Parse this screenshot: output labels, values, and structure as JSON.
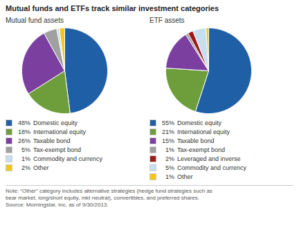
{
  "title": "Mutual funds and ETFs track similar investment categories",
  "annotations": [
    "Note: “Other” category includes alternative strategies (hedge fund strategies such as",
    "bear market, long/short equity, mkt neutral), convertibles, and preferred shares.",
    "Source: Morningstar, Inc. as of 9/30/2013."
  ],
  "chart_data": [
    {
      "type": "pie",
      "title": "Mutual fund assets",
      "categories": [
        "Domestic equity",
        "International equity",
        "Taxable bond",
        "Tax-exempt bond",
        "Commodity and currency",
        "Other"
      ],
      "values": [
        48,
        18,
        26,
        5,
        1,
        2
      ],
      "value_labels": [
        "48%",
        "18%",
        "26%",
        "5%",
        "1%",
        "2%"
      ],
      "colors": [
        "#1f5fa6",
        "#6e9e3b",
        "#7b3fa0",
        "#a0a0a0",
        "#c6dff0",
        "#f5c518"
      ],
      "legend": "bottom"
    },
    {
      "type": "pie",
      "title": "ETF assets",
      "categories": [
        "Domestic equity",
        "International equity",
        "Taxable bond",
        "Tax-exempt bond",
        "Leveraged and inverse",
        "Commodity and currency",
        "Other"
      ],
      "values": [
        55,
        21,
        15,
        1,
        2,
        5,
        1
      ],
      "value_labels": [
        "55%",
        "21%",
        "15%",
        "1%",
        "2%",
        "5%",
        "1%"
      ],
      "colors": [
        "#1f5fa6",
        "#6e9e3b",
        "#7b3fa0",
        "#a0a0a0",
        "#9e1a1a",
        "#c6dff0",
        "#f5c518"
      ],
      "legend": "bottom"
    }
  ]
}
